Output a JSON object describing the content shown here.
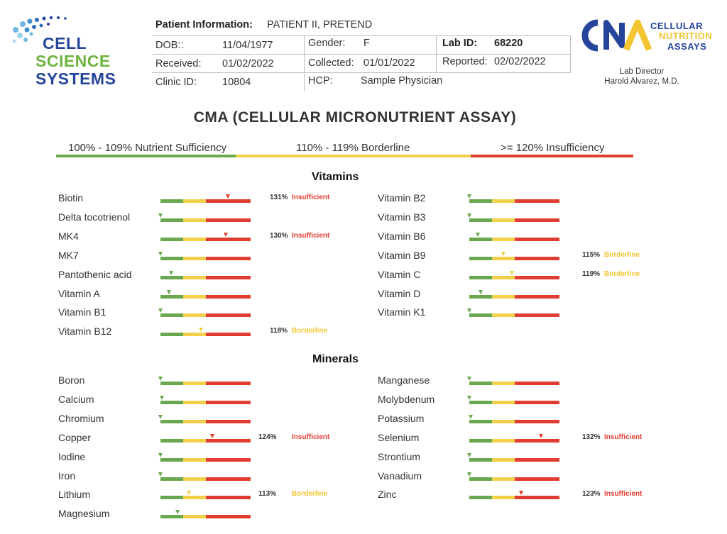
{
  "colors": {
    "green": "#6aa84f",
    "yellow": "#f2d04a",
    "red": "#e03c31",
    "insufficient": "#e03c31",
    "borderline": "#f2c531"
  },
  "logos": {
    "left": {
      "name": "Cell Science Systems logo",
      "lines": [
        "CELL",
        "SCIENCE",
        "SYSTEMS"
      ]
    },
    "right": {
      "name": "Cellular Nutrition Assays logo",
      "mark": "CNA",
      "lines": [
        "CELLULAR",
        "NUTRITION",
        "ASSAYS"
      ]
    }
  },
  "lab_director": {
    "title": "Lab Director",
    "name": "Harold Alvarez, M.D."
  },
  "patient": {
    "info_label": "Patient Information:",
    "info_value": "PATIENT II, PRETEND",
    "dob_label": "DOB::",
    "dob_value": "11/04/1977",
    "gender_label": "Gender:",
    "gender_value": "F",
    "labid_label": "Lab ID:",
    "labid_value": "68220",
    "received_label": "Received:",
    "received_value": "01/02/2022",
    "collected_label": "Collected:",
    "collected_value": "01/01/2022",
    "reported_label": "Reported:",
    "reported_value": "02/02/2022",
    "clinic_label": "Clinic ID:",
    "clinic_value": "10804",
    "hcp_label": "HCP:",
    "hcp_value": "Sample Physician"
  },
  "title": "CMA (CELLULAR MICRONUTRIENT ASSAY)",
  "legend": {
    "sufficient": "100% - 109% Nutrient Sufficiency",
    "borderline": "110%  - 119%  Borderline",
    "insufficient": ">= 120%  Insufficiency"
  },
  "sections": {
    "vitamins": {
      "heading": "Vitamins",
      "left": [
        {
          "name": "Biotin",
          "marker": 0.75,
          "zone": "red",
          "pct": "131%",
          "status": "Insufficient"
        },
        {
          "name": "Delta tocotrienol",
          "marker": 0.0,
          "zone": "green"
        },
        {
          "name": "MK4",
          "marker": 0.73,
          "zone": "red",
          "pct": "130%",
          "status": "Insufficient"
        },
        {
          "name": "MK7",
          "marker": 0.0,
          "zone": "green"
        },
        {
          "name": "Pantothenic acid",
          "marker": 0.12,
          "zone": "green"
        },
        {
          "name": "Vitamin A",
          "marker": 0.1,
          "zone": "green"
        },
        {
          "name": "Vitamin B1",
          "marker": 0.0,
          "zone": "green"
        },
        {
          "name": "Vitamin B12",
          "marker": 0.45,
          "zone": "yellow",
          "pct": "118%",
          "status": "Borderline"
        }
      ],
      "right": [
        {
          "name": "Vitamin B2",
          "marker": 0.0,
          "zone": "green"
        },
        {
          "name": "Vitamin B3",
          "marker": 0.0,
          "zone": "green"
        },
        {
          "name": "Vitamin B6",
          "marker": 0.1,
          "zone": "green"
        },
        {
          "name": "Vitamin B9",
          "marker": 0.38,
          "zone": "yellow",
          "pct": "115%",
          "status": "Borderline"
        },
        {
          "name": "Vitamin C",
          "marker": 0.48,
          "zone": "yellow",
          "pct": "119%",
          "status": "Borderline"
        },
        {
          "name": "Vitamin D",
          "marker": 0.13,
          "zone": "green"
        },
        {
          "name": "Vitamin K1",
          "marker": 0.0,
          "zone": "green"
        }
      ]
    },
    "minerals": {
      "heading": "Minerals",
      "left": [
        {
          "name": "Boron",
          "marker": 0.0,
          "zone": "green"
        },
        {
          "name": "Calcium",
          "marker": 0.02,
          "zone": "green"
        },
        {
          "name": "Chromium",
          "marker": 0.0,
          "zone": "green"
        },
        {
          "name": "Copper",
          "marker": 0.58,
          "zone": "red",
          "pct": "124%",
          "status": "Insufficient"
        },
        {
          "name": "Iodine",
          "marker": 0.0,
          "zone": "green"
        },
        {
          "name": "Iron",
          "marker": 0.0,
          "zone": "green"
        },
        {
          "name": "Lithium",
          "marker": 0.32,
          "zone": "yellow",
          "pct": "113%",
          "status": "Borderline"
        },
        {
          "name": "Magnesium",
          "marker": 0.19,
          "zone": "green"
        }
      ],
      "right": [
        {
          "name": "Manganese",
          "marker": 0.0,
          "zone": "green"
        },
        {
          "name": "Molybdenum",
          "marker": 0.0,
          "zone": "green"
        },
        {
          "name": "Potassium",
          "marker": 0.02,
          "zone": "green"
        },
        {
          "name": "Selenium",
          "marker": 0.8,
          "zone": "red",
          "pct": "132%",
          "status": "Insufficient"
        },
        {
          "name": "Strontium",
          "marker": 0.0,
          "zone": "green"
        },
        {
          "name": "Vanadium",
          "marker": 0.0,
          "zone": "green"
        },
        {
          "name": "Zinc",
          "marker": 0.58,
          "zone": "red",
          "pct": "123%",
          "status": "Insufficient"
        }
      ]
    }
  }
}
